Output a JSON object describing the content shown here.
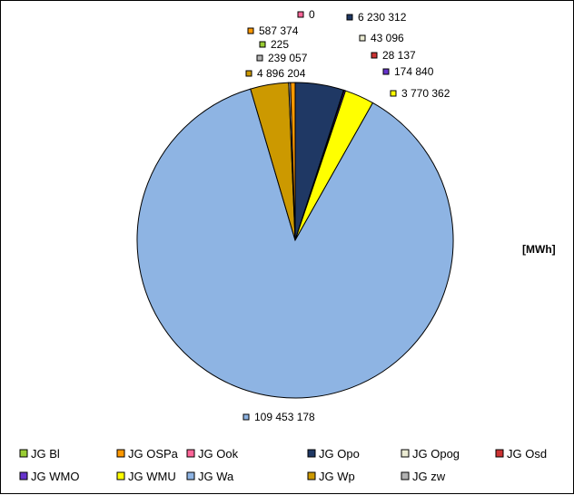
{
  "chart_data": {
    "type": "pie",
    "unit_label": "[MWh]",
    "legend_position": "bottom",
    "categories": [
      "JG Bl",
      "JG OSPa",
      "JG Ook",
      "JG Opo",
      "JG Opog",
      "JG Osd",
      "JG WMO",
      "JG WMU",
      "JG Wa",
      "JG Wp",
      "JG zw"
    ],
    "values": [
      225,
      587374,
      0,
      6230312,
      43096,
      28137,
      174840,
      3770362,
      109453178,
      4896204,
      239057
    ],
    "value_labels": [
      "225",
      "587 374",
      "0",
      "6 230 312",
      "43 096",
      "28 137",
      "174 840",
      "3 770 362",
      "109 453 178",
      "4 896 204",
      "239 057"
    ],
    "colors": [
      "#99cc33",
      "#ff9900",
      "#ff6699",
      "#1f3864",
      "#ebebd3",
      "#cc3333",
      "#6633cc",
      "#ffff00",
      "#8eb4e3",
      "#cc9900",
      "#b3b3b3"
    ],
    "slice_order": [
      2,
      3,
      4,
      5,
      6,
      7,
      8,
      9,
      10,
      0,
      1
    ]
  }
}
